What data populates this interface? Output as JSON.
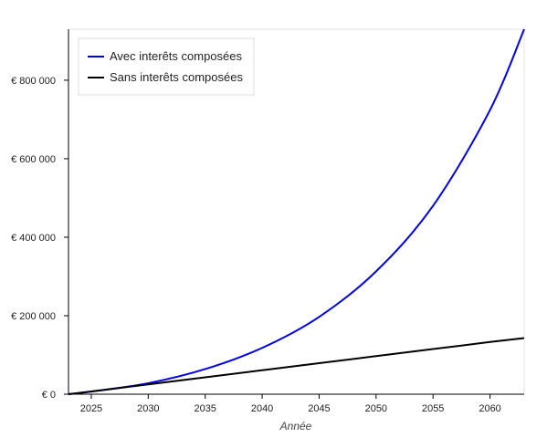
{
  "chart_data": {
    "type": "line",
    "xlabel": "Année",
    "ylabel": "",
    "xlim": [
      2023,
      2063
    ],
    "ylim": [
      0,
      930000
    ],
    "x_ticks": [
      2025,
      2030,
      2035,
      2040,
      2045,
      2050,
      2055,
      2060
    ],
    "x_tick_labels": [
      "2025",
      "2030",
      "2035",
      "2040",
      "2045",
      "2050",
      "2055",
      "2060"
    ],
    "y_ticks": [
      0,
      200000,
      400000,
      600000,
      800000
    ],
    "y_tick_labels": [
      "€ 0",
      "€ 200 000",
      "€ 400 000",
      "€ 600 000",
      "€ 800 000"
    ],
    "grid": false,
    "legend_position": "top-left",
    "x": [
      2023,
      2025,
      2030,
      2035,
      2040,
      2045,
      2050,
      2055,
      2060,
      2063
    ],
    "series": [
      {
        "name": "Avec interêts composées",
        "color": "#0000ee",
        "values": [
          0,
          6600,
          28000,
          64000,
          118000,
          197000,
          313000,
          480000,
          724000,
          930000
        ]
      },
      {
        "name": "Sans interêts composées",
        "color": "#000000",
        "values": [
          0,
          7100,
          25000,
          43000,
          61000,
          79000,
          97000,
          115000,
          133000,
          143000
        ]
      }
    ]
  }
}
